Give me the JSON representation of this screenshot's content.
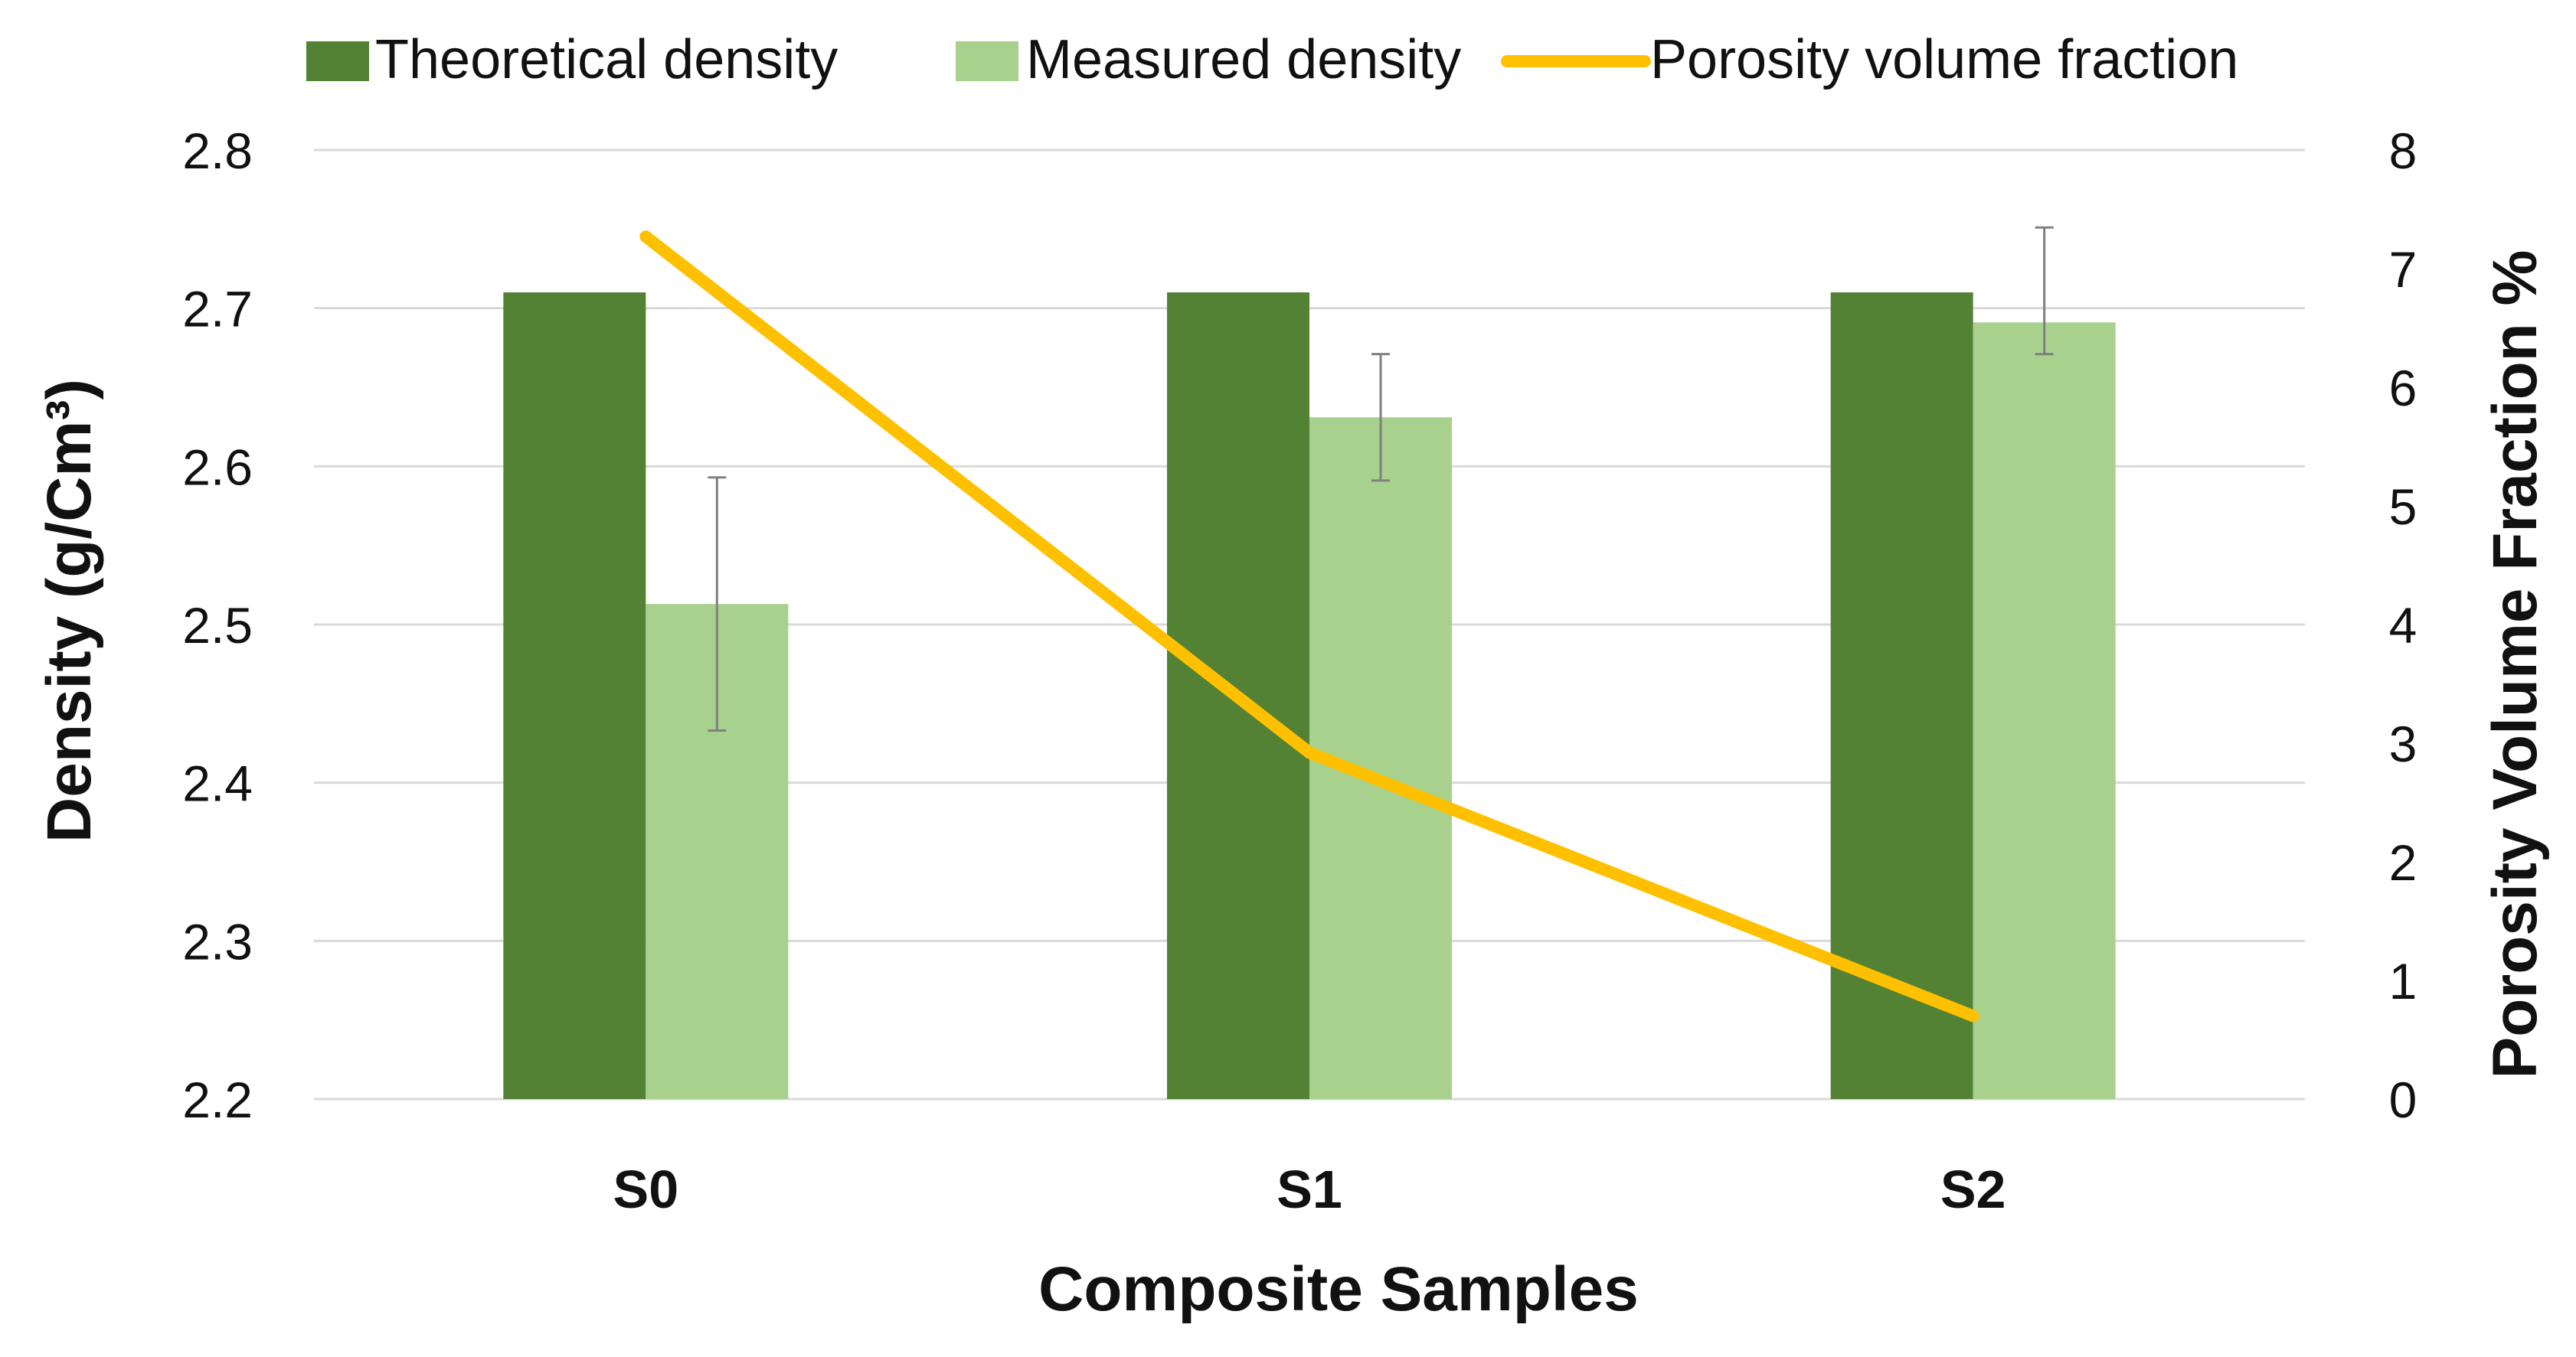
{
  "chart_data": {
    "type": "bar",
    "categories": [
      "S0",
      "S1",
      "S2"
    ],
    "series": [
      {
        "name": "Theoretical density",
        "kind": "bar",
        "axis": "left",
        "color": "#548235",
        "values": [
          2.71,
          2.71,
          2.71
        ]
      },
      {
        "name": "Measured density",
        "kind": "bar",
        "axis": "left",
        "color": "#A9D18E",
        "values": [
          2.513,
          2.631,
          2.691
        ],
        "error_low": [
          2.433,
          2.591,
          2.671
        ],
        "error_high": [
          2.593,
          2.671,
          2.751
        ]
      },
      {
        "name": "Porosity volume fraction",
        "kind": "line",
        "axis": "right",
        "color": "#FFC000",
        "values": [
          7.27,
          2.92,
          0.7
        ]
      }
    ],
    "xlabel": "Composite Samples",
    "ylabel": "Density (g/Cm³)",
    "y2label": "Porosity Volume Fraction %",
    "ylim": [
      2.2,
      2.8
    ],
    "yticks": [
      "2.2",
      "2.3",
      "2.4",
      "2.5",
      "2.6",
      "2.7",
      "2.8"
    ],
    "y2lim": [
      0,
      8
    ],
    "y2ticks": [
      "0",
      "1",
      "2",
      "3",
      "4",
      "5",
      "6",
      "7",
      "8"
    ],
    "grid": true,
    "legend_position": "top"
  }
}
